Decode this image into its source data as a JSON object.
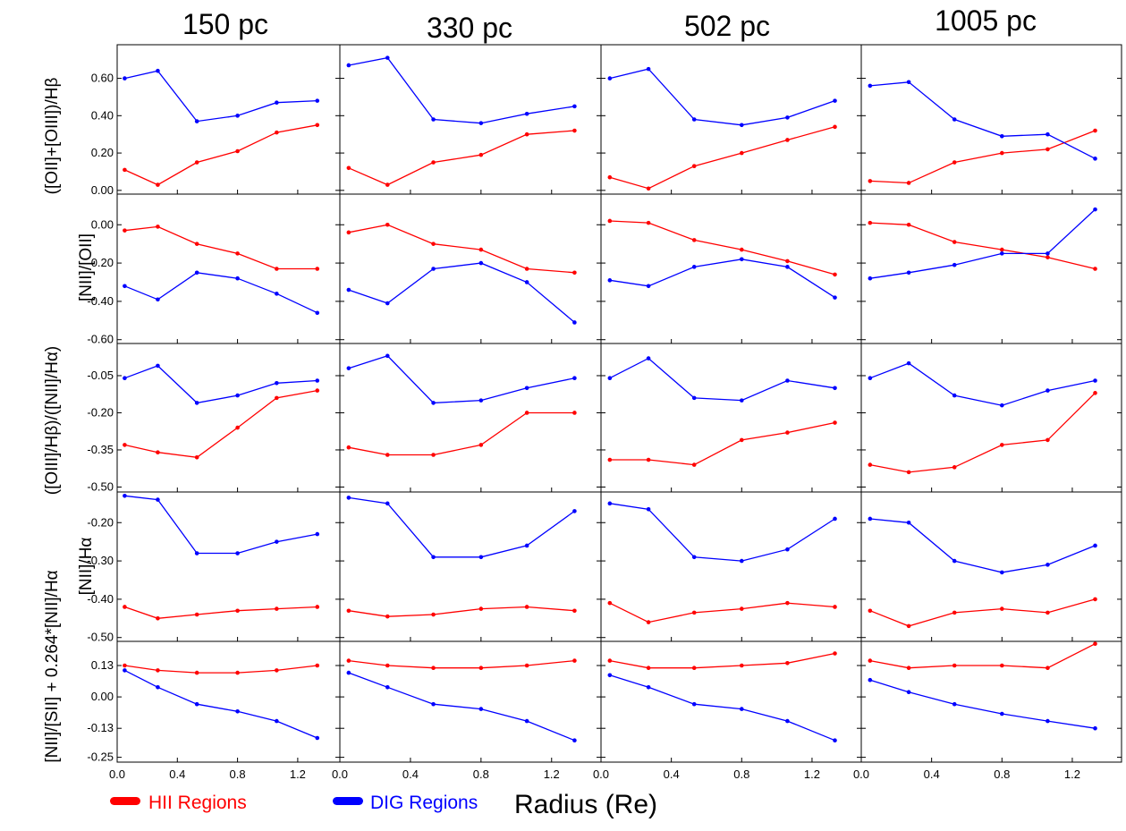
{
  "chart_data": {
    "type": "line",
    "columns": [
      "150 pc",
      "330 pc",
      "502 pc",
      "1005 pc"
    ],
    "xlabel": "Radius (Re)",
    "x": [
      0.05,
      0.27,
      0.53,
      0.8,
      1.06,
      1.33
    ],
    "xlim": [
      0.0,
      1.48
    ],
    "xticks": [
      "0.0",
      "0.4",
      "0.8",
      "1.2"
    ],
    "xtick_values": [
      0.0,
      0.4,
      0.8,
      1.2
    ],
    "legend": [
      {
        "name": "HII Regions",
        "color": "#ff0000"
      },
      {
        "name": "DIG Regions",
        "color": "#0000ff"
      }
    ],
    "series_colors": {
      "HII": "#ff0000",
      "DIG": "#0000ff"
    },
    "rows": [
      {
        "ylabel": "([OII]+[OIII])/Hβ",
        "ylim": [
          -0.02,
          0.78
        ],
        "ytick_values": [
          0.0,
          0.2,
          0.4,
          0.6
        ],
        "yticks": [
          "0.00",
          "0.20",
          "0.40",
          "0.60"
        ],
        "panels": [
          {
            "HII": [
              0.11,
              0.03,
              0.15,
              0.21,
              0.31,
              0.35
            ],
            "DIG": [
              0.6,
              0.64,
              0.37,
              0.4,
              0.47,
              0.48
            ]
          },
          {
            "HII": [
              0.12,
              0.03,
              0.15,
              0.19,
              0.3,
              0.32
            ],
            "DIG": [
              0.67,
              0.71,
              0.38,
              0.36,
              0.41,
              0.45
            ]
          },
          {
            "HII": [
              0.07,
              0.01,
              0.13,
              0.2,
              0.27,
              0.34
            ],
            "DIG": [
              0.6,
              0.65,
              0.38,
              0.35,
              0.39,
              0.48
            ]
          },
          {
            "HII": [
              0.05,
              0.04,
              0.15,
              0.2,
              0.22,
              0.32
            ],
            "DIG": [
              0.56,
              0.58,
              0.38,
              0.29,
              0.3,
              0.17
            ]
          }
        ]
      },
      {
        "ylabel": "[NII]/[OII]",
        "ylim": [
          -0.62,
          0.16
        ],
        "ytick_values": [
          0.0,
          -0.2,
          -0.4,
          -0.6
        ],
        "yticks": [
          "0.00",
          "-0.20",
          "-0.40",
          "-0.60"
        ],
        "panels": [
          {
            "HII": [
              -0.03,
              -0.01,
              -0.1,
              -0.15,
              -0.23,
              -0.23
            ],
            "DIG": [
              -0.32,
              -0.39,
              -0.25,
              -0.28,
              -0.36,
              -0.46
            ]
          },
          {
            "HII": [
              -0.04,
              0.0,
              -0.1,
              -0.13,
              -0.23,
              -0.25
            ],
            "DIG": [
              -0.34,
              -0.41,
              -0.23,
              -0.2,
              -0.3,
              -0.51
            ]
          },
          {
            "HII": [
              0.02,
              0.01,
              -0.08,
              -0.13,
              -0.19,
              -0.26
            ],
            "DIG": [
              -0.29,
              -0.32,
              -0.22,
              -0.18,
              -0.22,
              -0.38
            ]
          },
          {
            "HII": [
              0.01,
              0.0,
              -0.09,
              -0.13,
              -0.17,
              -0.23
            ],
            "DIG": [
              -0.28,
              -0.25,
              -0.21,
              -0.15,
              -0.15,
              0.08
            ]
          }
        ]
      },
      {
        "ylabel": "([OIII]/Hβ)/([NII]/Hα)",
        "ylim": [
          -0.52,
          0.08
        ],
        "ytick_values": [
          -0.05,
          -0.2,
          -0.35,
          -0.5
        ],
        "yticks": [
          "-0.05",
          "-0.20",
          "-0.35",
          "-0.50"
        ],
        "panels": [
          {
            "HII": [
              -0.33,
              -0.36,
              -0.38,
              -0.26,
              -0.14,
              -0.11
            ],
            "DIG": [
              -0.06,
              -0.01,
              -0.16,
              -0.13,
              -0.08,
              -0.07
            ]
          },
          {
            "HII": [
              -0.34,
              -0.37,
              -0.37,
              -0.33,
              -0.2,
              -0.2
            ],
            "DIG": [
              -0.02,
              0.03,
              -0.16,
              -0.15,
              -0.1,
              -0.06
            ]
          },
          {
            "HII": [
              -0.39,
              -0.39,
              -0.41,
              -0.31,
              -0.28,
              -0.24
            ],
            "DIG": [
              -0.06,
              0.02,
              -0.14,
              -0.15,
              -0.07,
              -0.1
            ]
          },
          {
            "HII": [
              -0.41,
              -0.44,
              -0.42,
              -0.33,
              -0.31,
              -0.12
            ],
            "DIG": [
              -0.06,
              0.0,
              -0.13,
              -0.17,
              -0.11,
              -0.07
            ]
          }
        ]
      },
      {
        "ylabel": "[NII]/Hα",
        "ylim": [
          -0.51,
          -0.12
        ],
        "ytick_values": [
          -0.2,
          -0.3,
          -0.4,
          -0.5
        ],
        "yticks": [
          "-0.20",
          "-0.30",
          "-0.40",
          "-0.50"
        ],
        "panels": [
          {
            "HII": [
              -0.42,
              -0.45,
              -0.44,
              -0.43,
              -0.425,
              -0.42
            ],
            "DIG": [
              -0.13,
              -0.14,
              -0.28,
              -0.28,
              -0.25,
              -0.23
            ]
          },
          {
            "HII": [
              -0.43,
              -0.445,
              -0.44,
              -0.425,
              -0.42,
              -0.43
            ],
            "DIG": [
              -0.135,
              -0.15,
              -0.29,
              -0.29,
              -0.26,
              -0.17
            ]
          },
          {
            "HII": [
              -0.41,
              -0.46,
              -0.435,
              -0.425,
              -0.41,
              -0.42
            ],
            "DIG": [
              -0.15,
              -0.165,
              -0.29,
              -0.3,
              -0.27,
              -0.19
            ]
          },
          {
            "HII": [
              -0.43,
              -0.47,
              -0.435,
              -0.425,
              -0.435,
              -0.4
            ],
            "DIG": [
              -0.19,
              -0.2,
              -0.3,
              -0.33,
              -0.31,
              -0.26
            ]
          }
        ]
      },
      {
        "ylabel": "[NII]/[SII] + 0.264*[NII]/Hα",
        "ylim": [
          -0.27,
          0.23
        ],
        "ytick_values": [
          0.13,
          0.0,
          -0.13,
          -0.25
        ],
        "yticks": [
          "0.13",
          "0.00",
          "-0.13",
          "-0.25"
        ],
        "panels": [
          {
            "HII": [
              0.13,
              0.11,
              0.1,
              0.1,
              0.11,
              0.13
            ],
            "DIG": [
              0.11,
              0.04,
              -0.03,
              -0.06,
              -0.1,
              -0.17
            ]
          },
          {
            "HII": [
              0.15,
              0.13,
              0.12,
              0.12,
              0.13,
              0.15
            ],
            "DIG": [
              0.1,
              0.04,
              -0.03,
              -0.05,
              -0.1,
              -0.18
            ]
          },
          {
            "HII": [
              0.15,
              0.12,
              0.12,
              0.13,
              0.14,
              0.18
            ],
            "DIG": [
              0.09,
              0.04,
              -0.03,
              -0.05,
              -0.1,
              -0.18
            ]
          },
          {
            "HII": [
              0.15,
              0.12,
              0.13,
              0.13,
              0.12,
              0.22
            ],
            "DIG": [
              0.07,
              0.02,
              -0.03,
              -0.07,
              -0.1,
              -0.13
            ]
          }
        ]
      }
    ]
  }
}
